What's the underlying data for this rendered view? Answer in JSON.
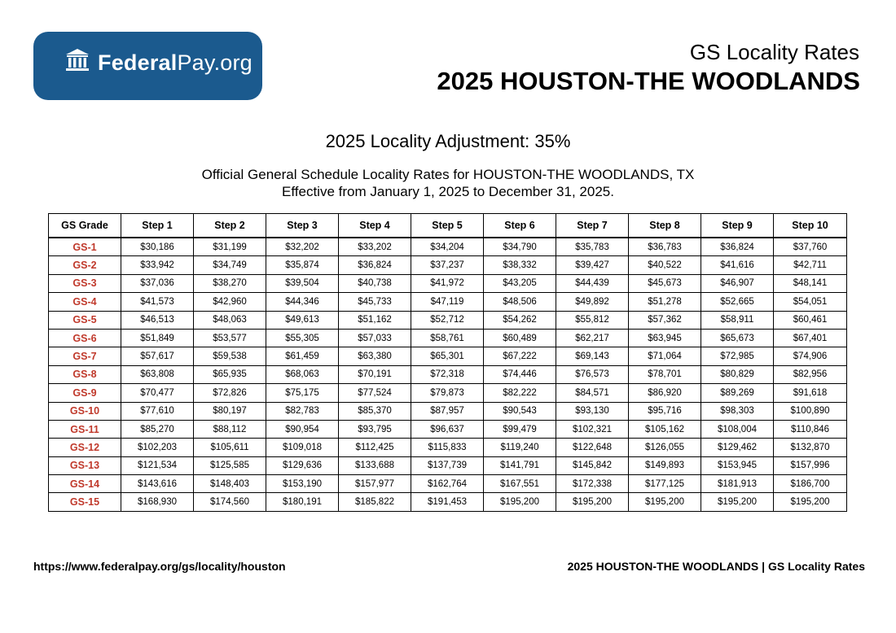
{
  "logo": {
    "text_bold": "Federal",
    "text_regular": "Pay.org",
    "brand_color": "#1b5a8e",
    "icon": "building-columns-icon"
  },
  "header": {
    "subtitle": "GS Locality Rates",
    "title": "2025 HOUSTON-THE WOODLANDS"
  },
  "adjustment": "2025 Locality Adjustment: 35%",
  "description": {
    "line1": "Official General Schedule Locality Rates for HOUSTON-THE WOODLANDS, TX",
    "line2": "Effective from January 1, 2025 to December 31, 2025."
  },
  "table": {
    "headers": [
      "GS Grade",
      "Step 1",
      "Step 2",
      "Step 3",
      "Step 4",
      "Step 5",
      "Step 6",
      "Step 7",
      "Step 8",
      "Step 9",
      "Step 10"
    ],
    "grade_color": "#c0392b",
    "rows": [
      [
        "GS-1",
        "$30,186",
        "$31,199",
        "$32,202",
        "$33,202",
        "$34,204",
        "$34,790",
        "$35,783",
        "$36,783",
        "$36,824",
        "$37,760"
      ],
      [
        "GS-2",
        "$33,942",
        "$34,749",
        "$35,874",
        "$36,824",
        "$37,237",
        "$38,332",
        "$39,427",
        "$40,522",
        "$41,616",
        "$42,711"
      ],
      [
        "GS-3",
        "$37,036",
        "$38,270",
        "$39,504",
        "$40,738",
        "$41,972",
        "$43,205",
        "$44,439",
        "$45,673",
        "$46,907",
        "$48,141"
      ],
      [
        "GS-4",
        "$41,573",
        "$42,960",
        "$44,346",
        "$45,733",
        "$47,119",
        "$48,506",
        "$49,892",
        "$51,278",
        "$52,665",
        "$54,051"
      ],
      [
        "GS-5",
        "$46,513",
        "$48,063",
        "$49,613",
        "$51,162",
        "$52,712",
        "$54,262",
        "$55,812",
        "$57,362",
        "$58,911",
        "$60,461"
      ],
      [
        "GS-6",
        "$51,849",
        "$53,577",
        "$55,305",
        "$57,033",
        "$58,761",
        "$60,489",
        "$62,217",
        "$63,945",
        "$65,673",
        "$67,401"
      ],
      [
        "GS-7",
        "$57,617",
        "$59,538",
        "$61,459",
        "$63,380",
        "$65,301",
        "$67,222",
        "$69,143",
        "$71,064",
        "$72,985",
        "$74,906"
      ],
      [
        "GS-8",
        "$63,808",
        "$65,935",
        "$68,063",
        "$70,191",
        "$72,318",
        "$74,446",
        "$76,573",
        "$78,701",
        "$80,829",
        "$82,956"
      ],
      [
        "GS-9",
        "$70,477",
        "$72,826",
        "$75,175",
        "$77,524",
        "$79,873",
        "$82,222",
        "$84,571",
        "$86,920",
        "$89,269",
        "$91,618"
      ],
      [
        "GS-10",
        "$77,610",
        "$80,197",
        "$82,783",
        "$85,370",
        "$87,957",
        "$90,543",
        "$93,130",
        "$95,716",
        "$98,303",
        "$100,890"
      ],
      [
        "GS-11",
        "$85,270",
        "$88,112",
        "$90,954",
        "$93,795",
        "$96,637",
        "$99,479",
        "$102,321",
        "$105,162",
        "$108,004",
        "$110,846"
      ],
      [
        "GS-12",
        "$102,203",
        "$105,611",
        "$109,018",
        "$112,425",
        "$115,833",
        "$119,240",
        "$122,648",
        "$126,055",
        "$129,462",
        "$132,870"
      ],
      [
        "GS-13",
        "$121,534",
        "$125,585",
        "$129,636",
        "$133,688",
        "$137,739",
        "$141,791",
        "$145,842",
        "$149,893",
        "$153,945",
        "$157,996"
      ],
      [
        "GS-14",
        "$143,616",
        "$148,403",
        "$153,190",
        "$157,977",
        "$162,764",
        "$167,551",
        "$172,338",
        "$177,125",
        "$181,913",
        "$186,700"
      ],
      [
        "GS-15",
        "$168,930",
        "$174,560",
        "$180,191",
        "$185,822",
        "$191,453",
        "$195,200",
        "$195,200",
        "$195,200",
        "$195,200",
        "$195,200"
      ]
    ]
  },
  "footer": {
    "url": "https://www.federalpay.org/gs/locality/houston",
    "caption": "2025 HOUSTON-THE WOODLANDS | GS Locality Rates"
  }
}
